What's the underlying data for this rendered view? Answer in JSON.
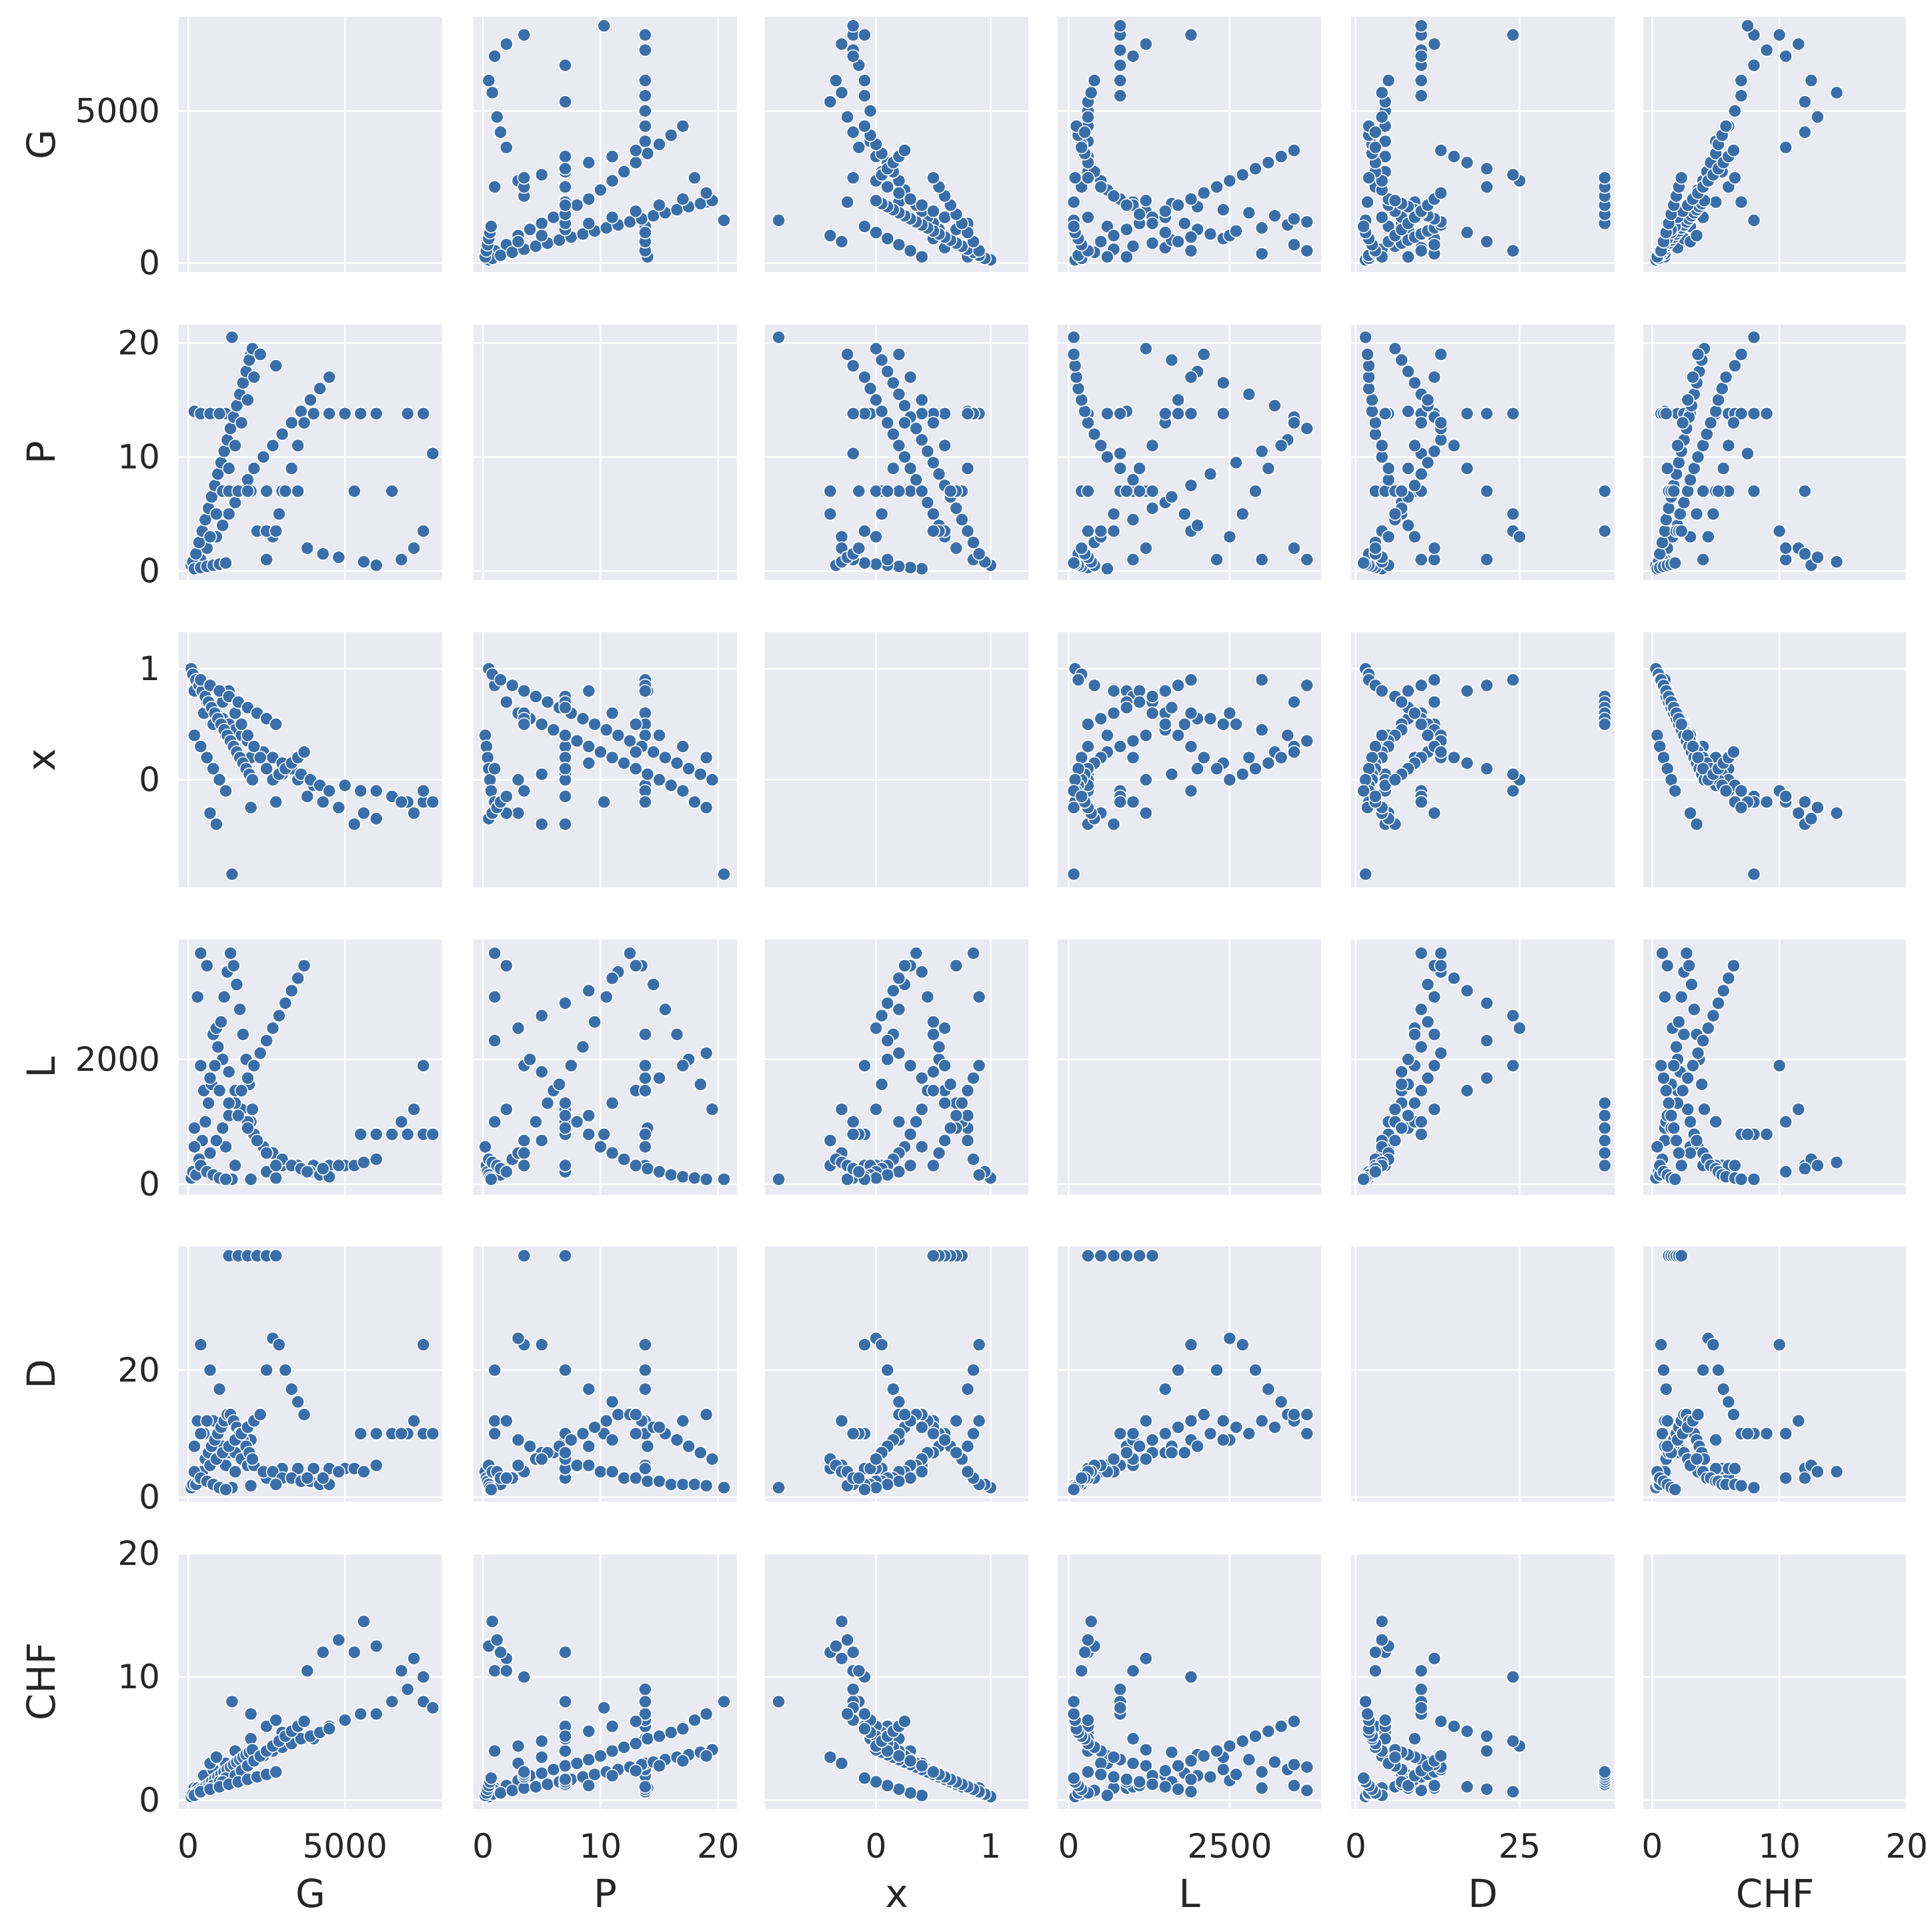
{
  "chart_data": {
    "type": "scatter",
    "kind": "pairplot-matrix",
    "diagonal": "empty",
    "grid": true,
    "background": "#eaeaf2",
    "point_color": "#3a6ea9",
    "point_edge": "#ffffff",
    "variables": [
      {
        "name": "G",
        "range": [
          -300,
          8100
        ],
        "ticks": [
          {
            "v": 0,
            "t": "0"
          },
          {
            "v": 5000,
            "t": "5000"
          }
        ]
      },
      {
        "name": "P",
        "range": [
          -0.8,
          21.6
        ],
        "ticks": [
          {
            "v": 0,
            "t": "0"
          },
          {
            "v": 10,
            "t": "10"
          },
          {
            "v": 20,
            "t": "20"
          }
        ]
      },
      {
        "name": "x",
        "range": [
          -0.97,
          1.33
        ],
        "ticks": [
          {
            "v": 0,
            "t": "0"
          },
          {
            "v": 1,
            "t": "1"
          }
        ]
      },
      {
        "name": "L",
        "range": [
          -170,
          3920
        ],
        "ticks": [
          {
            "v": 0,
            "t": "0"
          },
          {
            "v": 2000,
            "t": "2000"
          }
        ],
        "ticks_x": [
          {
            "v": 0,
            "t": "0"
          },
          {
            "v": 2500,
            "t": "2500"
          }
        ]
      },
      {
        "name": "D",
        "range": [
          -0.7,
          39.5
        ],
        "ticks": [
          {
            "v": 0,
            "t": "0"
          },
          {
            "v": 20,
            "t": "20"
          }
        ],
        "ticks_x": [
          {
            "v": 0,
            "t": "0"
          },
          {
            "v": 25,
            "t": "25"
          }
        ]
      },
      {
        "name": "CHF",
        "range": [
          -0.7,
          20.0
        ],
        "ticks": [
          {
            "v": 0,
            "t": "0"
          },
          {
            "v": 10,
            "t": "10"
          },
          {
            "v": 20,
            "t": "20"
          }
        ]
      }
    ],
    "points": [
      [
        200,
        14.0,
        0.8,
        900,
        8,
        1.0
      ],
      [
        500,
        13.8,
        0.6,
        1500,
        10,
        2.0
      ],
      [
        800,
        13.8,
        0.5,
        2400,
        12,
        2.5
      ],
      [
        1200,
        13.8,
        0.4,
        600,
        5,
        3.0
      ],
      [
        1500,
        7.0,
        0.3,
        300,
        4,
        4.0
      ],
      [
        2000,
        7.0,
        0.2,
        1000,
        9,
        5.0
      ],
      [
        2500,
        7.0,
        0.1,
        200,
        3,
        6.0
      ],
      [
        3000,
        7.0,
        0.05,
        300,
        4.5,
        5.5
      ],
      [
        3500,
        7.0,
        0.0,
        300,
        4.5,
        6.0
      ],
      [
        4000,
        13.8,
        -0.05,
        300,
        4.5,
        5.0
      ],
      [
        4500,
        13.8,
        -0.1,
        300,
        4.5,
        6.0
      ],
      [
        5000,
        13.8,
        -0.05,
        300,
        4.5,
        6.5
      ],
      [
        5500,
        13.8,
        -0.1,
        800,
        10,
        7.0
      ],
      [
        6000,
        13.8,
        -0.1,
        800,
        10,
        7.0
      ],
      [
        6500,
        7.0,
        -0.15,
        800,
        10,
        8.0
      ],
      [
        7000,
        13.8,
        -0.2,
        800,
        10,
        9.0
      ],
      [
        7500,
        13.8,
        -0.2,
        800,
        10,
        8.0
      ],
      [
        7800,
        10.3,
        -0.2,
        800,
        10,
        7.5
      ],
      [
        7500,
        3.5,
        -0.1,
        1900,
        24,
        10.0
      ],
      [
        5300,
        7.0,
        -0.4,
        300,
        4.5,
        12.0
      ],
      [
        300,
        1.0,
        0.9,
        3000,
        12,
        1.0
      ],
      [
        400,
        1.0,
        0.85,
        3700,
        10,
        0.8
      ],
      [
        600,
        2.0,
        0.7,
        3500,
        12,
        1.2
      ],
      [
        900,
        3.0,
        0.6,
        2500,
        9,
        1.6
      ],
      [
        1100,
        4.0,
        0.55,
        2000,
        8,
        2.0
      ],
      [
        1300,
        5.0,
        0.5,
        1800,
        7,
        2.2
      ],
      [
        1500,
        6.0,
        0.45,
        1500,
        7,
        2.5
      ],
      [
        1700,
        7.0,
        0.4,
        1200,
        6,
        2.8
      ],
      [
        1900,
        8.0,
        0.35,
        1000,
        5,
        3.0
      ],
      [
        2100,
        9.0,
        0.3,
        800,
        5,
        3.3
      ],
      [
        2400,
        10.0,
        0.25,
        600,
        4,
        3.6
      ],
      [
        2700,
        11.0,
        0.2,
        500,
        4,
        4.0
      ],
      [
        3000,
        12.0,
        0.15,
        400,
        3,
        4.3
      ],
      [
        3300,
        13.0,
        0.1,
        300,
        3,
        4.6
      ],
      [
        3600,
        14.0,
        0.05,
        250,
        2.5,
        5.0
      ],
      [
        3900,
        15.0,
        0.0,
        200,
        2.5,
        5.2
      ],
      [
        4200,
        16.0,
        -0.05,
        150,
        2,
        5.5
      ],
      [
        4500,
        17.0,
        -0.1,
        120,
        2,
        5.8
      ],
      [
        2800,
        18.0,
        -0.2,
        100,
        2,
        6.5
      ],
      [
        2000,
        19.0,
        -0.25,
        80,
        1.8,
        7.0
      ],
      [
        1400,
        20.5,
        -0.85,
        80,
        1.5,
        8.0
      ],
      [
        100,
        0.5,
        1.0,
        100,
        1.5,
        0.3
      ],
      [
        150,
        0.8,
        0.95,
        200,
        2,
        0.5
      ],
      [
        250,
        1.5,
        0.9,
        150,
        2,
        0.6
      ],
      [
        350,
        2.5,
        0.85,
        400,
        3,
        0.8
      ],
      [
        450,
        3.5,
        0.8,
        700,
        4,
        1.0
      ],
      [
        550,
        4.5,
        0.75,
        1000,
        6,
        1.1
      ],
      [
        650,
        5.5,
        0.7,
        1300,
        7,
        1.3
      ],
      [
        750,
        6.5,
        0.65,
        1600,
        8,
        1.5
      ],
      [
        850,
        7.5,
        0.6,
        1900,
        9,
        1.7
      ],
      [
        950,
        8.5,
        0.55,
        2200,
        10,
        1.9
      ],
      [
        1050,
        9.5,
        0.5,
        2600,
        11,
        2.1
      ],
      [
        1150,
        10.5,
        0.45,
        3000,
        12,
        2.3
      ],
      [
        1250,
        11.5,
        0.4,
        3400,
        13,
        2.5
      ],
      [
        1350,
        12.5,
        0.35,
        3700,
        13,
        2.7
      ],
      [
        1450,
        13.5,
        0.3,
        3500,
        12,
        2.9
      ],
      [
        1550,
        14.5,
        0.25,
        3200,
        11,
        3.1
      ],
      [
        1650,
        15.5,
        0.2,
        2800,
        10,
        3.3
      ],
      [
        1750,
        16.5,
        0.15,
        2400,
        9,
        3.5
      ],
      [
        1850,
        17.5,
        0.1,
        2000,
        8,
        3.7
      ],
      [
        1950,
        18.5,
        0.05,
        1600,
        7,
        3.9
      ],
      [
        2050,
        19.5,
        0.0,
        1200,
        6,
        4.1
      ],
      [
        200,
        0.2,
        0.4,
        600,
        4,
        0.4
      ],
      [
        400,
        0.3,
        0.3,
        300,
        3,
        0.6
      ],
      [
        600,
        0.4,
        0.2,
        200,
        2.5,
        0.9
      ],
      [
        800,
        0.5,
        0.1,
        150,
        2,
        1.2
      ],
      [
        1000,
        0.6,
        0.0,
        100,
        1.5,
        1.5
      ],
      [
        1200,
        0.7,
        -0.1,
        80,
        1.2,
        1.8
      ],
      [
        700,
        3.0,
        -0.3,
        500,
        5,
        3.0
      ],
      [
        900,
        5.0,
        -0.4,
        700,
        6,
        3.5
      ],
      [
        1100,
        7.0,
        0.7,
        900,
        7,
        1.5
      ],
      [
        1300,
        9.0,
        0.8,
        1100,
        8,
        1.2
      ],
      [
        1500,
        11.0,
        0.6,
        1300,
        9,
        2.0
      ],
      [
        1700,
        13.0,
        0.5,
        1500,
        10,
        2.4
      ],
      [
        1900,
        15.0,
        0.4,
        1700,
        11,
        2.8
      ],
      [
        2100,
        17.0,
        0.3,
        1900,
        12,
        3.2
      ],
      [
        2300,
        19.0,
        0.2,
        2100,
        13,
        3.6
      ],
      [
        2500,
        1.0,
        0.1,
        2300,
        20,
        4.0
      ],
      [
        2700,
        3.0,
        0.0,
        2500,
        25,
        4.4
      ],
      [
        2900,
        5.0,
        0.05,
        2700,
        24,
        4.8
      ],
      [
        3100,
        7.0,
        0.1,
        2900,
        20,
        5.2
      ],
      [
        3300,
        9.0,
        0.15,
        3100,
        17,
        5.6
      ],
      [
        3500,
        11.0,
        0.2,
        3300,
        15,
        6.0
      ],
      [
        3700,
        13.0,
        0.25,
        3500,
        13,
        6.4
      ],
      [
        6800,
        1.0,
        -0.2,
        1000,
        10,
        10.5
      ],
      [
        7200,
        2.0,
        -0.3,
        1200,
        12,
        11.5
      ],
      [
        6000,
        0.5,
        -0.35,
        400,
        5,
        12.5
      ],
      [
        5600,
        0.8,
        -0.3,
        350,
        4,
        14.5
      ],
      [
        4800,
        1.2,
        -0.25,
        300,
        4,
        13.0
      ],
      [
        4300,
        1.5,
        -0.2,
        250,
        3,
        12.0
      ],
      [
        3800,
        2.0,
        -0.15,
        200,
        3,
        10.5
      ],
      [
        400,
        13.8,
        0.9,
        1900,
        24,
        0.7
      ],
      [
        700,
        13.8,
        0.85,
        1700,
        20,
        0.9
      ],
      [
        1000,
        13.8,
        0.8,
        1500,
        17,
        1.1
      ],
      [
        1300,
        7.0,
        0.75,
        1300,
        38,
        1.3
      ],
      [
        1600,
        7.0,
        0.7,
        1100,
        38,
        1.5
      ],
      [
        1900,
        7.0,
        0.65,
        900,
        38,
        1.7
      ],
      [
        2200,
        3.5,
        0.6,
        700,
        38,
        1.9
      ],
      [
        2500,
        3.5,
        0.55,
        500,
        38,
        2.1
      ],
      [
        2800,
        3.5,
        0.5,
        300,
        38,
        2.3
      ]
    ]
  }
}
